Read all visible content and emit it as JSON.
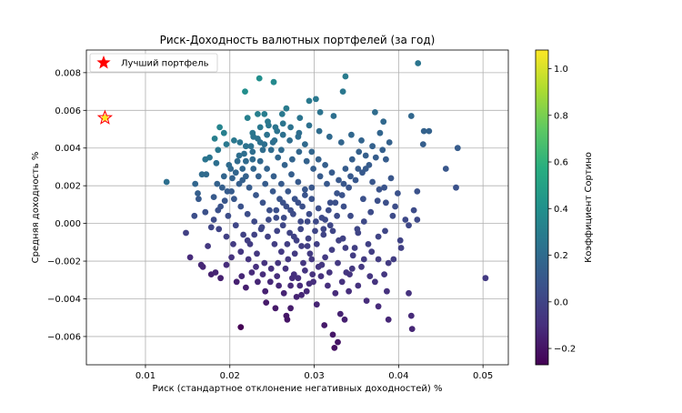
{
  "chart_data": {
    "type": "scatter",
    "title": "Риск-Доходность валютных портфелей (за год)",
    "xlabel": "Риск (стандартное отклонение негативных доходностей) %",
    "ylabel": "Средняя доходность %",
    "xlim": [
      0.003,
      0.053
    ],
    "ylim": [
      -0.0075,
      0.0092
    ],
    "xticks": [
      0.01,
      0.02,
      0.03,
      0.04,
      0.05
    ],
    "xtick_labels": [
      "0.01",
      "0.02",
      "0.03",
      "0.04",
      "0.05"
    ],
    "yticks": [
      -0.006,
      -0.004,
      -0.002,
      0.0,
      0.002,
      0.004,
      0.006,
      0.008
    ],
    "ytick_labels": [
      "−0.006",
      "−0.004",
      "−0.002",
      "0.000",
      "0.002",
      "0.004",
      "0.006",
      "0.008"
    ],
    "grid": true,
    "legend": {
      "placement": "top-left",
      "entries": [
        {
          "label": "Лучший портфель",
          "marker": "star",
          "color": "#ff0000"
        }
      ]
    },
    "colorbar": {
      "label": "Коэффициент Сортино",
      "colormap": "viridis",
      "range": [
        -0.27,
        1.08
      ],
      "ticks": [
        -0.2,
        0.0,
        0.2,
        0.4,
        0.6,
        0.8,
        1.0
      ],
      "tick_labels": [
        "−0.2",
        "0.0",
        "0.2",
        "0.4",
        "0.6",
        "0.8",
        "1.0"
      ]
    },
    "best_portfolio": {
      "x": 0.0052,
      "y": 0.0056,
      "sortino": 1.08
    },
    "points": [
      [
        0.0125,
        0.0022
      ],
      [
        0.0423,
        0.0085
      ],
      [
        0.0503,
        -0.0029
      ],
      [
        0.047,
        0.004
      ],
      [
        0.0468,
        0.0019
      ],
      [
        0.0456,
        0.0029
      ],
      [
        0.043,
        0.0049
      ],
      [
        0.0436,
        0.0049
      ],
      [
        0.0429,
        0.0042
      ],
      [
        0.0415,
        0.0057
      ],
      [
        0.0422,
        0.0017
      ],
      [
        0.0422,
        0.0002
      ],
      [
        0.0418,
        0.0007
      ],
      [
        0.0412,
        -0.0001
      ],
      [
        0.0402,
        -0.0009
      ],
      [
        0.0412,
        -0.0037
      ],
      [
        0.0415,
        -0.0049
      ],
      [
        0.0416,
        -0.0056
      ],
      [
        0.0388,
        -0.0051
      ],
      [
        0.0386,
        -0.0036
      ],
      [
        0.0376,
        -0.0044
      ],
      [
        0.0388,
        -0.0021
      ],
      [
        0.0396,
        0.0009
      ],
      [
        0.0385,
        0.0034
      ],
      [
        0.0382,
        0.0054
      ],
      [
        0.0372,
        0.0059
      ],
      [
        0.0369,
        0.0041
      ],
      [
        0.0361,
        0.0029
      ],
      [
        0.0358,
        0.0013
      ],
      [
        0.0352,
        -0.0005
      ],
      [
        0.0345,
        -0.0024
      ],
      [
        0.0341,
        -0.0036
      ],
      [
        0.0331,
        -0.0048
      ],
      [
        0.0336,
        -0.0051
      ],
      [
        0.0322,
        -0.0059
      ],
      [
        0.0324,
        -0.0066
      ],
      [
        0.0328,
        -0.0063
      ],
      [
        0.0312,
        -0.0054
      ],
      [
        0.0303,
        -0.0043
      ],
      [
        0.0294,
        -0.0032
      ],
      [
        0.0279,
        -0.0039
      ],
      [
        0.0272,
        -0.0045
      ],
      [
        0.0267,
        -0.0049
      ],
      [
        0.0268,
        -0.0051
      ],
      [
        0.0254,
        -0.0045
      ],
      [
        0.0243,
        -0.0042
      ],
      [
        0.0213,
        -0.0055
      ],
      [
        0.0219,
        -0.0034
      ],
      [
        0.0208,
        -0.0031
      ],
      [
        0.0189,
        -0.0029
      ],
      [
        0.0178,
        -0.0027
      ],
      [
        0.0168,
        -0.0023
      ],
      [
        0.0153,
        -0.0018
      ],
      [
        0.0148,
        -0.0005
      ],
      [
        0.0158,
        0.0004
      ],
      [
        0.0162,
        0.0016
      ],
      [
        0.0172,
        0.0026
      ],
      [
        0.0176,
        0.0035
      ],
      [
        0.0182,
        0.0045
      ],
      [
        0.0188,
        0.0051
      ],
      [
        0.0193,
        0.0048
      ],
      [
        0.0218,
        0.007
      ],
      [
        0.0235,
        0.0077
      ],
      [
        0.0252,
        0.0075
      ],
      [
        0.0294,
        0.0065
      ],
      [
        0.0302,
        0.0066
      ],
      [
        0.0323,
        0.0057
      ],
      [
        0.0337,
        0.0078
      ],
      [
        0.0334,
        0.007
      ],
      [
        0.0307,
        0.0059
      ],
      [
        0.0283,
        0.0056
      ],
      [
        0.0267,
        0.0061
      ],
      [
        0.0241,
        0.0058
      ],
      [
        0.0221,
        0.0056
      ],
      [
        0.0233,
        0.0058
      ],
      [
        0.0262,
        0.0058
      ],
      [
        0.0246,
        0.0052
      ],
      [
        0.0256,
        0.0049
      ],
      [
        0.0227,
        0.0048
      ],
      [
        0.0205,
        0.0044
      ],
      [
        0.0212,
        0.0043
      ],
      [
        0.0196,
        0.0042
      ],
      [
        0.0186,
        0.0039
      ],
      [
        0.0184,
        0.0032
      ],
      [
        0.0171,
        0.0034
      ],
      [
        0.0167,
        0.0026
      ],
      [
        0.0159,
        0.0021
      ],
      [
        0.0163,
        0.0013
      ],
      [
        0.0171,
        0.0006
      ],
      [
        0.0178,
        -0.0002
      ],
      [
        0.0174,
        -0.0012
      ],
      [
        0.0166,
        -0.0022
      ],
      [
        0.0183,
        -0.0026
      ],
      [
        0.0196,
        -0.0022
      ],
      [
        0.0202,
        -0.0018
      ],
      [
        0.0214,
        -0.0028
      ],
      [
        0.0226,
        -0.0026
      ],
      [
        0.0233,
        -0.0031
      ],
      [
        0.0242,
        -0.0036
      ],
      [
        0.0258,
        -0.0033
      ],
      [
        0.0276,
        -0.0027
      ],
      [
        0.0285,
        -0.0038
      ],
      [
        0.0298,
        -0.0027
      ],
      [
        0.0309,
        -0.0022
      ],
      [
        0.0318,
        -0.0026
      ],
      [
        0.0328,
        -0.0021
      ],
      [
        0.0338,
        -0.0026
      ],
      [
        0.0356,
        -0.0023
      ],
      [
        0.0366,
        -0.0028
      ],
      [
        0.0376,
        -0.0019
      ],
      [
        0.0364,
        -0.0011
      ],
      [
        0.0348,
        -0.0013
      ],
      [
        0.0334,
        -0.0008
      ],
      [
        0.0322,
        -0.0004
      ],
      [
        0.0313,
        0.0002
      ],
      [
        0.0305,
        0.0008
      ],
      [
        0.0297,
        0.0013
      ],
      [
        0.0289,
        0.0018
      ],
      [
        0.0281,
        0.0022
      ],
      [
        0.0273,
        0.0026
      ],
      [
        0.0265,
        0.0031
      ],
      [
        0.0257,
        0.0035
      ],
      [
        0.0249,
        0.0039
      ],
      [
        0.0241,
        0.0042
      ],
      [
        0.0233,
        0.0045
      ],
      [
        0.0225,
        0.0041
      ],
      [
        0.0217,
        0.0037
      ],
      [
        0.0209,
        0.0033
      ],
      [
        0.0201,
        0.0029
      ],
      [
        0.0193,
        0.0025
      ],
      [
        0.0185,
        0.0021
      ],
      [
        0.0197,
        0.0017
      ],
      [
        0.0205,
        0.0013
      ],
      [
        0.0213,
        0.0009
      ],
      [
        0.0221,
        0.0005
      ],
      [
        0.0229,
        0.0001
      ],
      [
        0.0237,
        -0.0003
      ],
      [
        0.0245,
        -0.0007
      ],
      [
        0.0253,
        -0.0011
      ],
      [
        0.0261,
        -0.0015
      ],
      [
        0.0269,
        -0.0019
      ],
      [
        0.0277,
        -0.0016
      ],
      [
        0.0285,
        -0.0012
      ],
      [
        0.0293,
        -0.0008
      ],
      [
        0.0301,
        -0.0004
      ],
      [
        0.0309,
        0.0003
      ],
      [
        0.0317,
        0.0007
      ],
      [
        0.0325,
        0.0011
      ],
      [
        0.0333,
        0.0015
      ],
      [
        0.0341,
        0.0019
      ],
      [
        0.0349,
        0.0023
      ],
      [
        0.0357,
        0.0027
      ],
      [
        0.0365,
        0.0031
      ],
      [
        0.0373,
        0.0035
      ],
      [
        0.0381,
        0.0039
      ],
      [
        0.0389,
        0.0043
      ],
      [
        0.0378,
        0.0048
      ],
      [
        0.0356,
        0.0044
      ],
      [
        0.0344,
        0.0047
      ],
      [
        0.0332,
        0.0043
      ],
      [
        0.0318,
        0.0046
      ],
      [
        0.0306,
        0.0049
      ],
      [
        0.0294,
        0.0052
      ],
      [
        0.0282,
        0.0048
      ],
      [
        0.0271,
        0.0044
      ],
      [
        0.0263,
        0.0047
      ],
      [
        0.0251,
        0.0043
      ],
      [
        0.0239,
        0.0039
      ],
      [
        0.0227,
        0.0034
      ],
      [
        0.0215,
        0.0029
      ],
      [
        0.0203,
        0.0024
      ],
      [
        0.0191,
        0.0019
      ],
      [
        0.0181,
        0.0014
      ],
      [
        0.0189,
        0.0009
      ],
      [
        0.0198,
        0.0004
      ],
      [
        0.0207,
        -0.0001
      ],
      [
        0.0216,
        -0.0006
      ],
      [
        0.0224,
        -0.0011
      ],
      [
        0.0232,
        -0.0016
      ],
      [
        0.0241,
        -0.0021
      ],
      [
        0.0249,
        -0.0024
      ],
      [
        0.0257,
        -0.0021
      ],
      [
        0.0266,
        -0.0024
      ],
      [
        0.0274,
        -0.0029
      ],
      [
        0.0283,
        -0.0033
      ],
      [
        0.0291,
        -0.0036
      ],
      [
        0.0299,
        -0.0031
      ],
      [
        0.0308,
        -0.0028
      ],
      [
        0.0316,
        -0.0033
      ],
      [
        0.0325,
        -0.0037
      ],
      [
        0.0333,
        -0.0031
      ],
      [
        0.0342,
        -0.0027
      ],
      [
        0.0352,
        -0.0033
      ],
      [
        0.0362,
        -0.0041
      ],
      [
        0.0372,
        -0.0031
      ],
      [
        0.0383,
        -0.0027
      ],
      [
        0.0394,
        -0.0019
      ],
      [
        0.0403,
        -0.0013
      ],
      [
        0.0408,
        0.0002
      ],
      [
        0.0399,
        0.0016
      ],
      [
        0.0391,
        0.0024
      ],
      [
        0.0383,
        0.0019
      ],
      [
        0.0375,
        0.0012
      ],
      [
        0.0367,
        0.0006
      ],
      [
        0.0359,
        0.0001
      ],
      [
        0.0351,
        -0.0003
      ],
      [
        0.0343,
        0.0004
      ],
      [
        0.0335,
        0.0009
      ],
      [
        0.0327,
        0.0004
      ],
      [
        0.0319,
        -0.0001
      ],
      [
        0.0311,
        -0.0006
      ],
      [
        0.0303,
        -0.0011
      ],
      [
        0.0295,
        -0.0016
      ],
      [
        0.0287,
        -0.0021
      ],
      [
        0.0279,
        -0.0009
      ],
      [
        0.0271,
        -0.0005
      ],
      [
        0.0263,
        -0.0001
      ],
      [
        0.0255,
        0.0003
      ],
      [
        0.0247,
        0.0007
      ],
      [
        0.0239,
        0.0011
      ],
      [
        0.0231,
        0.0015
      ],
      [
        0.0223,
        0.0019
      ],
      [
        0.0215,
        0.0023
      ],
      [
        0.0207,
        0.0027
      ],
      [
        0.0199,
        0.0031
      ],
      [
        0.0211,
        0.0036
      ],
      [
        0.0219,
        0.0041
      ],
      [
        0.0228,
        0.0046
      ],
      [
        0.0236,
        0.0051
      ],
      [
        0.0245,
        0.0054
      ],
      [
        0.0254,
        0.0051
      ],
      [
        0.0263,
        0.0053
      ],
      [
        0.0272,
        0.0051
      ],
      [
        0.0281,
        0.0046
      ],
      [
        0.0289,
        0.0042
      ],
      [
        0.0297,
        0.0038
      ],
      [
        0.0305,
        0.0034
      ],
      [
        0.0313,
        0.0031
      ],
      [
        0.0321,
        0.0027
      ],
      [
        0.0329,
        0.0023
      ],
      [
        0.0337,
        0.0029
      ],
      [
        0.0345,
        0.0034
      ],
      [
        0.0353,
        0.0038
      ],
      [
        0.0361,
        0.0036
      ],
      [
        0.0369,
        0.0022
      ],
      [
        0.0377,
        0.0018
      ],
      [
        0.0385,
        0.0011
      ],
      [
        0.0393,
        0.0004
      ],
      [
        0.0384,
        -0.0004
      ],
      [
        0.0376,
        -0.0007
      ],
      [
        0.0368,
        -0.0015
      ],
      [
        0.0359,
        -0.0019
      ],
      [
        0.0346,
        -0.0017
      ],
      [
        0.0337,
        -0.0013
      ],
      [
        0.0329,
        -0.0009
      ],
      [
        0.0321,
        -0.0014
      ],
      [
        0.0313,
        -0.0018
      ],
      [
        0.0305,
        -0.0023
      ],
      [
        0.0297,
        -0.0019
      ],
      [
        0.0289,
        -0.0025
      ],
      [
        0.0281,
        -0.0029
      ],
      [
        0.0272,
        -0.0033
      ],
      [
        0.0264,
        -0.0037
      ],
      [
        0.0256,
        -0.0028
      ],
      [
        0.0248,
        -0.0031
      ],
      [
        0.0239,
        -0.0027
      ],
      [
        0.0231,
        -0.0023
      ],
      [
        0.0222,
        -0.0019
      ],
      [
        0.0213,
        -0.0015
      ],
      [
        0.0204,
        -0.0011
      ],
      [
        0.0196,
        -0.0007
      ],
      [
        0.0187,
        -0.0003
      ],
      [
        0.0181,
        0.0002
      ],
      [
        0.0186,
        0.0007
      ],
      [
        0.0194,
        0.0012
      ],
      [
        0.0202,
        0.0017
      ],
      [
        0.0211,
        0.0021
      ],
      [
        0.0219,
        0.0025
      ],
      [
        0.0228,
        0.0029
      ],
      [
        0.0236,
        0.0033
      ],
      [
        0.0244,
        0.0029
      ],
      [
        0.0252,
        0.0025
      ],
      [
        0.0261,
        0.0021
      ],
      [
        0.0269,
        0.0017
      ],
      [
        0.0277,
        0.0013
      ],
      [
        0.0286,
        0.0009
      ],
      [
        0.0294,
        0.0005
      ],
      [
        0.0302,
        0.0001
      ],
      [
        0.0311,
        -0.0003
      ],
      [
        0.0319,
        0.0011
      ],
      [
        0.0327,
        0.0016
      ],
      [
        0.0335,
        0.0021
      ],
      [
        0.0343,
        0.0025
      ],
      [
        0.0352,
        0.0029
      ],
      [
        0.0261,
        0.0039
      ],
      [
        0.0253,
        0.0044
      ],
      [
        0.0244,
        0.0047
      ],
      [
        0.0236,
        0.0043
      ],
      [
        0.0227,
        0.0038
      ],
      [
        0.0219,
        0.0033
      ],
      [
        0.0274,
        0.0034
      ],
      [
        0.0282,
        0.0038
      ],
      [
        0.0291,
        0.0033
      ],
      [
        0.0299,
        0.0029
      ],
      [
        0.0307,
        0.0025
      ],
      [
        0.0315,
        0.0021
      ],
      [
        0.0263,
        0.0011
      ],
      [
        0.0255,
        0.0007
      ],
      [
        0.0246,
        0.0002
      ],
      [
        0.0238,
        -0.0002
      ],
      [
        0.0229,
        -0.0006
      ],
      [
        0.0221,
        -0.0009
      ],
      [
        0.0256,
        -0.0004
      ],
      [
        0.0264,
        0.0003
      ],
      [
        0.0272,
        0.0007
      ],
      [
        0.0281,
        0.0011
      ],
      [
        0.0289,
        0.0015
      ],
      [
        0.0297,
        0.0019
      ],
      [
        0.0268,
        -0.0011
      ],
      [
        0.0276,
        -0.0007
      ],
      [
        0.0284,
        -0.0003
      ],
      [
        0.0292,
        0.0001
      ],
      [
        0.0234,
        0.0025
      ],
      [
        0.0242,
        0.0021
      ],
      [
        0.0251,
        0.0017
      ],
      [
        0.0259,
        0.0013
      ],
      [
        0.0267,
        0.0009
      ],
      [
        0.0275,
        0.0005
      ],
      [
        0.0284,
        0.0001
      ],
      [
        0.0292,
        -0.0012
      ]
    ]
  }
}
